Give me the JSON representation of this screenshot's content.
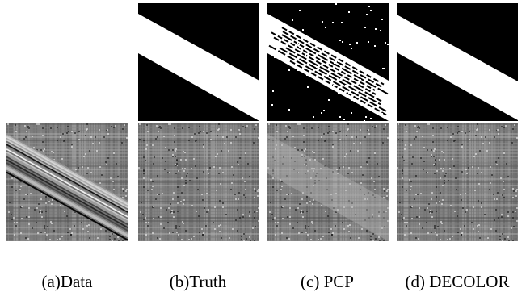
{
  "figure": {
    "captions": {
      "data": "(a)Data",
      "truth": "(b)Truth",
      "pcp": "(c) PCP",
      "decolor": "(d) DECOLOR"
    }
  }
}
